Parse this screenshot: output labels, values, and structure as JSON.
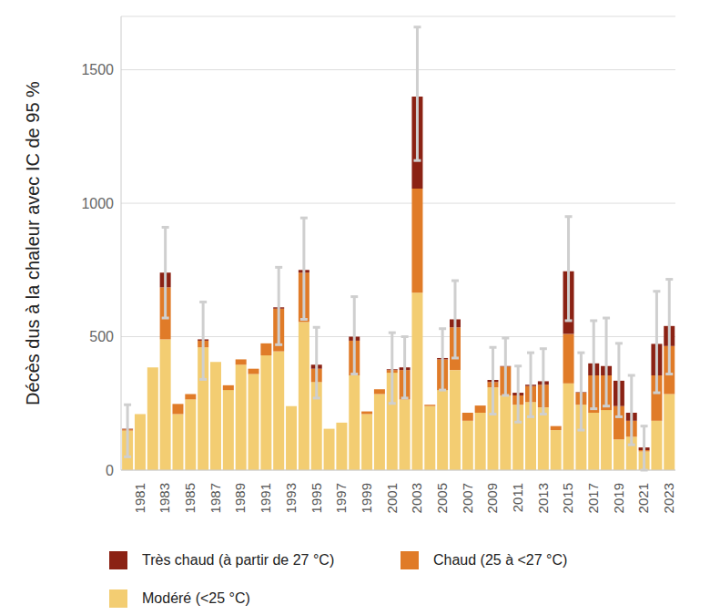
{
  "chart_data": {
    "type": "bar",
    "y_label": "Décès dus à la chaleur avec IC de 95 %",
    "categories": [
      null,
      "1981",
      null,
      "1983",
      null,
      "1985",
      null,
      "1987",
      null,
      "1989",
      null,
      "1991",
      null,
      "1993",
      null,
      "1995",
      null,
      "1997",
      null,
      "1999",
      null,
      "2001",
      null,
      "2003",
      null,
      "2005",
      null,
      "2007",
      null,
      "2009",
      null,
      "2011",
      null,
      "2013",
      null,
      "2015",
      null,
      "2017",
      null,
      "2019",
      null,
      "2021",
      null,
      "2023"
    ],
    "series": [
      {
        "name": "Modéré (<25 °C)",
        "color": "#f3cd72",
        "values": [
          148,
          210,
          385,
          490,
          210,
          265,
          460,
          405,
          300,
          395,
          360,
          430,
          445,
          240,
          555,
          330,
          155,
          178,
          355,
          210,
          285,
          365,
          265,
          665,
          240,
          300,
          375,
          185,
          215,
          310,
          280,
          245,
          255,
          235,
          150,
          325,
          245,
          215,
          225,
          115,
          125,
          70,
          185,
          285
        ]
      },
      {
        "name": "Chaud (25 à <27 °C)",
        "color": "#e07b28",
        "values": [
          5,
          0,
          0,
          195,
          38,
          20,
          25,
          0,
          18,
          20,
          20,
          45,
          160,
          0,
          185,
          50,
          0,
          0,
          130,
          10,
          18,
          10,
          110,
          390,
          5,
          115,
          160,
          30,
          27,
          20,
          108,
          35,
          60,
          85,
          15,
          185,
          45,
          140,
          130,
          125,
          60,
          5,
          170,
          180
        ]
      },
      {
        "name": "Très chaud (à partir de 27 °C)",
        "color": "#8b2214",
        "values": [
          2,
          0,
          0,
          55,
          0,
          0,
          5,
          0,
          0,
          0,
          0,
          0,
          5,
          0,
          10,
          15,
          0,
          0,
          15,
          0,
          0,
          3,
          10,
          345,
          0,
          5,
          30,
          0,
          0,
          8,
          2,
          10,
          5,
          13,
          0,
          235,
          2,
          45,
          35,
          95,
          30,
          10,
          118,
          75
        ]
      }
    ],
    "ci_low": [
      50,
      90,
      240,
      570,
      160,
      160,
      340,
      270,
      220,
      290,
      265,
      320,
      470,
      110,
      565,
      270,
      50,
      55,
      360,
      85,
      180,
      250,
      270,
      1160,
      140,
      300,
      420,
      120,
      160,
      210,
      280,
      180,
      200,
      210,
      70,
      560,
      150,
      230,
      240,
      200,
      95,
      0,
      290,
      360
    ],
    "ci_high": [
      245,
      320,
      520,
      910,
      340,
      415,
      630,
      535,
      420,
      540,
      505,
      630,
      760,
      360,
      945,
      535,
      260,
      315,
      650,
      355,
      435,
      515,
      500,
      1660,
      355,
      530,
      710,
      305,
      335,
      460,
      495,
      390,
      440,
      455,
      250,
      950,
      440,
      560,
      570,
      475,
      355,
      165,
      670,
      715
    ],
    "ylim": [
      0,
      1700
    ],
    "yticks": [
      0,
      500,
      1000,
      1500
    ],
    "grid": true,
    "stacked": true,
    "legend": "bottom"
  }
}
